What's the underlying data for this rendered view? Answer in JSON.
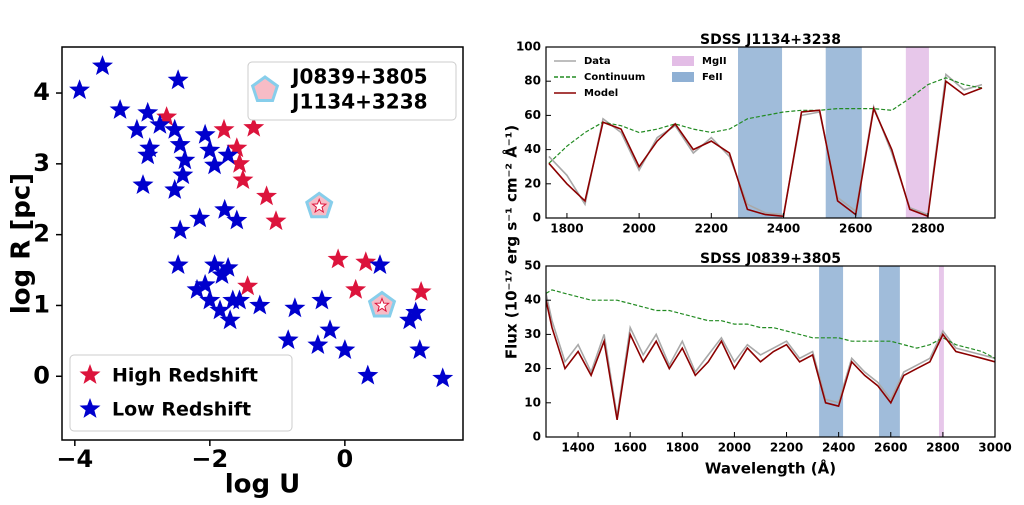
{
  "chart_data": [
    {
      "type": "scatter",
      "xlabel": "log U",
      "ylabel": "log R [pc]",
      "xlim": [
        -4.19,
        1.75
      ],
      "ylim": [
        -0.9,
        4.65
      ],
      "xticks": [
        {
          "value": -4,
          "label": "−4"
        },
        {
          "value": -2,
          "label": "−2"
        },
        0
      ],
      "yticks": [
        0,
        1,
        2,
        3,
        4
      ],
      "legend": "lower left",
      "series": [
        {
          "name": "High Redshift",
          "color": "#dc143c",
          "x": [
            -2.64,
            -1.79,
            -1.35,
            -1.6,
            -1.56,
            -1.51,
            -1.16,
            -1.02,
            -1.44,
            -0.1,
            0.31,
            0.16,
            1.13
          ],
          "y": [
            3.66,
            3.48,
            3.51,
            3.22,
            3.0,
            2.77,
            2.54,
            2.19,
            1.27,
            1.65,
            1.61,
            1.22,
            1.19
          ]
        },
        {
          "name": "Low Redshift",
          "color": "#0000cd",
          "x": [
            -3.93,
            -3.59,
            -2.47,
            -3.33,
            -2.92,
            -2.74,
            -3.08,
            -2.89,
            -2.92,
            -2.52,
            -2.44,
            -2.37,
            -2.4,
            -2.99,
            -2.52,
            -2.07,
            -2.0,
            -1.93,
            -1.73,
            -2.15,
            -2.44,
            -1.6,
            -2.47,
            -2.07,
            -1.93,
            -1.82,
            -1.73,
            -2.0,
            -1.85,
            -1.7,
            -1.66,
            -1.26,
            -0.74,
            -0.34,
            -0.84,
            -0.4,
            0.0,
            -0.22,
            0.52,
            0.34,
            0.96,
            1.11,
            1.05,
            1.45,
            -2.19,
            -1.56,
            -1.78
          ],
          "y": [
            4.04,
            4.38,
            4.18,
            3.76,
            3.72,
            3.55,
            3.48,
            3.22,
            3.12,
            3.48,
            3.27,
            3.05,
            2.84,
            2.7,
            2.63,
            3.41,
            3.19,
            2.98,
            3.12,
            2.23,
            2.06,
            2.2,
            1.57,
            1.29,
            1.57,
            1.43,
            1.53,
            1.07,
            0.93,
            0.79,
            1.07,
            1.0,
            0.96,
            1.07,
            0.51,
            0.44,
            0.37,
            0.65,
            1.57,
            0.01,
            0.79,
            0.37,
            0.9,
            -0.03,
            1.22,
            1.07,
            2.35
          ]
        }
      ],
      "highlights": [
        {
          "label": "J0839+3805",
          "x": 0.55,
          "y": 1.0
        },
        {
          "label": "J1134+3238",
          "x": -0.38,
          "y": 2.4
        }
      ],
      "highlight_color": "#f7bcc6",
      "highlight_edge": "#87ceeb"
    },
    {
      "type": "line",
      "title": "SDSS J1134+3238",
      "ylabel": "Flux (10⁻¹⁷ erg s⁻¹ cm⁻² Å⁻¹)",
      "xlim": [
        1742,
        2986
      ],
      "ylim": [
        0,
        100
      ],
      "xticks": [
        1800,
        2000,
        2200,
        2400,
        2600,
        2800
      ],
      "yticks": [
        0,
        20,
        40,
        60,
        80,
        100
      ],
      "legend": "upper left",
      "x": [
        1750,
        1800,
        1850,
        1900,
        1950,
        2000,
        2050,
        2100,
        2150,
        2200,
        2250,
        2300,
        2350,
        2400,
        2450,
        2500,
        2550,
        2600,
        2650,
        2700,
        2750,
        2800,
        2850,
        2900,
        2950
      ],
      "series": [
        {
          "name": "Data",
          "color": "#a9a9a9",
          "values": [
            36,
            25,
            8,
            58,
            50,
            28,
            47,
            54,
            38,
            47,
            36,
            8,
            3,
            2,
            60,
            62,
            12,
            4,
            65,
            38,
            6,
            2,
            84,
            75,
            78
          ]
        },
        {
          "name": "Continuum",
          "color": "#228b22",
          "dash": true,
          "values": [
            32,
            42,
            50,
            56,
            54,
            50,
            52,
            55,
            52,
            50,
            52,
            58,
            60,
            62,
            63,
            63,
            64,
            64,
            64,
            63,
            70,
            78,
            82,
            78,
            76
          ]
        },
        {
          "name": "Model",
          "color": "#8b0000",
          "values": [
            32,
            20,
            10,
            56,
            52,
            30,
            45,
            55,
            40,
            45,
            38,
            5,
            2,
            1,
            62,
            63,
            10,
            2,
            64,
            40,
            5,
            1,
            80,
            72,
            76
          ]
        }
      ],
      "regions": [
        {
          "name": "MgII",
          "color": "#e3bde6",
          "ranges": [
            [
              2739,
              2803
            ]
          ]
        },
        {
          "name": "FeII",
          "color": "#8fb0d4",
          "ranges": [
            [
              2274,
              2396
            ],
            [
              2517,
              2617
            ]
          ]
        }
      ]
    },
    {
      "type": "line",
      "title": "SDSS J0839+3805",
      "xlabel": "Wavelength (Å)",
      "xlim": [
        1277,
        3000
      ],
      "ylim": [
        0,
        50
      ],
      "xticks": [
        1400,
        1600,
        1800,
        2000,
        2200,
        2400,
        2600,
        2800,
        3000
      ],
      "yticks": [
        0,
        10,
        20,
        30,
        40,
        50
      ],
      "x": [
        1277,
        1300,
        1350,
        1400,
        1450,
        1500,
        1550,
        1600,
        1650,
        1700,
        1750,
        1800,
        1850,
        1900,
        1950,
        2000,
        2050,
        2100,
        2150,
        2200,
        2250,
        2300,
        2350,
        2400,
        2450,
        2500,
        2550,
        2600,
        2650,
        2700,
        2750,
        2800,
        2850,
        2900,
        2950,
        3000
      ],
      "series": [
        {
          "color": "#a9a9a9",
          "values": [
            42,
            34,
            22,
            27,
            19,
            30,
            6,
            32,
            24,
            30,
            21,
            28,
            19,
            24,
            29,
            22,
            27,
            24,
            26,
            28,
            23,
            25,
            11,
            10,
            23,
            19,
            16,
            11,
            19,
            21,
            23,
            31,
            26,
            25,
            24,
            23
          ]
        },
        {
          "color": "#228b22",
          "dash": true,
          "values": [
            42,
            43,
            42,
            41,
            40,
            40,
            40,
            39,
            38,
            37,
            37,
            36,
            35,
            34,
            34,
            33,
            33,
            32,
            32,
            31,
            30,
            29,
            29,
            29,
            28,
            28,
            28,
            28,
            27,
            26,
            27,
            29,
            27,
            26,
            25,
            23
          ]
        },
        {
          "color": "#8b0000",
          "values": [
            40,
            32,
            20,
            25,
            18,
            28,
            5,
            30,
            22,
            28,
            20,
            26,
            18,
            22,
            28,
            20,
            26,
            22,
            25,
            27,
            22,
            24,
            10,
            9,
            22,
            18,
            15,
            10,
            18,
            20,
            22,
            30,
            25,
            24,
            23,
            22
          ]
        }
      ],
      "regions": [
        {
          "color": "#e3bde6",
          "ranges": [
            [
              2785,
              2804
            ]
          ]
        },
        {
          "color": "#8fb0d4",
          "ranges": [
            [
              2325,
              2417
            ],
            [
              2555,
              2635
            ]
          ]
        }
      ]
    }
  ]
}
